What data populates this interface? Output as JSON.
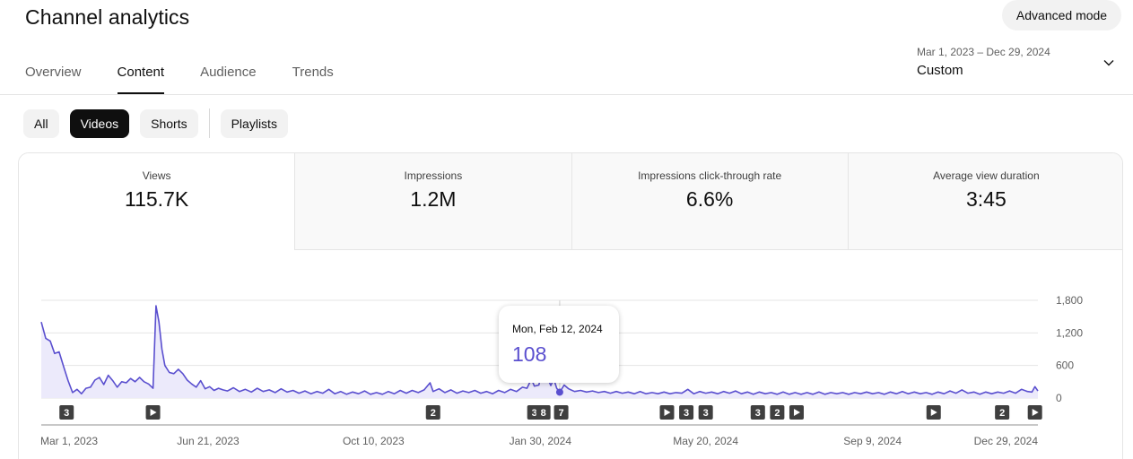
{
  "header": {
    "title": "Channel analytics",
    "advanced_mode_label": "Advanced mode"
  },
  "tabs": [
    {
      "label": "Overview",
      "active": false
    },
    {
      "label": "Content",
      "active": true
    },
    {
      "label": "Audience",
      "active": false
    },
    {
      "label": "Trends",
      "active": false
    }
  ],
  "date_range": {
    "range_label": "Mar 1, 2023 – Dec 29, 2024",
    "preset": "Custom",
    "icon": "chevron-down-icon"
  },
  "filters": {
    "chips": [
      {
        "label": "All",
        "selected": false
      },
      {
        "label": "Videos",
        "selected": true
      },
      {
        "label": "Shorts",
        "selected": false
      }
    ],
    "playlists_label": "Playlists"
  },
  "metrics": [
    {
      "label": "Views",
      "value": "115.7K",
      "selected": true
    },
    {
      "label": "Impressions",
      "value": "1.2M",
      "selected": false
    },
    {
      "label": "Impressions click-through rate",
      "value": "6.6%",
      "selected": false
    },
    {
      "label": "Average view duration",
      "value": "3:45",
      "selected": false
    }
  ],
  "tooltip": {
    "date": "Mon, Feb 12, 2024",
    "value": "108"
  },
  "colors": {
    "series": "#5a4fcf",
    "area_fill": "#eceafb",
    "marker": "#3f3f3f"
  },
  "chart_data": {
    "type": "area",
    "ylim": [
      0,
      1800
    ],
    "y_ticks": [
      0,
      600,
      1200,
      1800
    ],
    "y_tick_labels": [
      "0",
      "600",
      "1,200",
      "1,800"
    ],
    "x_range": [
      "2023-03-01",
      "2024-12-29"
    ],
    "x_tick_labels": [
      {
        "date": "2023-03-01",
        "label": "Mar 1, 2023"
      },
      {
        "date": "2023-06-21",
        "label": "Jun 21, 2023"
      },
      {
        "date": "2023-10-10",
        "label": "Oct 10, 2023"
      },
      {
        "date": "2024-01-30",
        "label": "Jan 30, 2024"
      },
      {
        "date": "2024-05-20",
        "label": "May 20, 2024"
      },
      {
        "date": "2024-09-09",
        "label": "Sep 9, 2024"
      },
      {
        "date": "2024-12-29",
        "label": "Dec 29, 2024"
      }
    ],
    "series": [
      {
        "points": [
          [
            "2023-03-01",
            1400
          ],
          [
            "2023-03-04",
            1100
          ],
          [
            "2023-03-07",
            1050
          ],
          [
            "2023-03-10",
            820
          ],
          [
            "2023-03-13",
            850
          ],
          [
            "2023-03-16",
            580
          ],
          [
            "2023-03-19",
            320
          ],
          [
            "2023-03-22",
            100
          ],
          [
            "2023-03-25",
            160
          ],
          [
            "2023-03-28",
            80
          ],
          [
            "2023-03-31",
            180
          ],
          [
            "2023-04-03",
            200
          ],
          [
            "2023-04-06",
            330
          ],
          [
            "2023-04-09",
            380
          ],
          [
            "2023-04-12",
            250
          ],
          [
            "2023-04-15",
            420
          ],
          [
            "2023-04-18",
            320
          ],
          [
            "2023-04-21",
            200
          ],
          [
            "2023-04-24",
            300
          ],
          [
            "2023-04-27",
            280
          ],
          [
            "2023-04-30",
            360
          ],
          [
            "2023-05-03",
            300
          ],
          [
            "2023-05-06",
            380
          ],
          [
            "2023-05-09",
            300
          ],
          [
            "2023-05-12",
            260
          ],
          [
            "2023-05-15",
            180
          ],
          [
            "2023-05-17",
            1700
          ],
          [
            "2023-05-19",
            1400
          ],
          [
            "2023-05-21",
            900
          ],
          [
            "2023-05-23",
            600
          ],
          [
            "2023-05-26",
            470
          ],
          [
            "2023-05-29",
            450
          ],
          [
            "2023-06-01",
            530
          ],
          [
            "2023-06-04",
            450
          ],
          [
            "2023-06-07",
            330
          ],
          [
            "2023-06-10",
            260
          ],
          [
            "2023-06-13",
            200
          ],
          [
            "2023-06-16",
            320
          ],
          [
            "2023-06-19",
            170
          ],
          [
            "2023-06-22",
            210
          ],
          [
            "2023-06-25",
            140
          ],
          [
            "2023-06-28",
            180
          ],
          [
            "2023-07-01",
            150
          ],
          [
            "2023-07-04",
            130
          ],
          [
            "2023-07-08",
            190
          ],
          [
            "2023-07-12",
            120
          ],
          [
            "2023-07-16",
            160
          ],
          [
            "2023-07-20",
            110
          ],
          [
            "2023-07-24",
            180
          ],
          [
            "2023-07-28",
            120
          ],
          [
            "2023-08-01",
            150
          ],
          [
            "2023-08-05",
            100
          ],
          [
            "2023-08-09",
            170
          ],
          [
            "2023-08-13",
            110
          ],
          [
            "2023-08-17",
            140
          ],
          [
            "2023-08-21",
            90
          ],
          [
            "2023-08-25",
            130
          ],
          [
            "2023-08-29",
            80
          ],
          [
            "2023-09-02",
            120
          ],
          [
            "2023-09-06",
            90
          ],
          [
            "2023-09-10",
            160
          ],
          [
            "2023-09-14",
            80
          ],
          [
            "2023-09-18",
            120
          ],
          [
            "2023-09-22",
            70
          ],
          [
            "2023-09-26",
            110
          ],
          [
            "2023-09-30",
            80
          ],
          [
            "2023-10-04",
            130
          ],
          [
            "2023-10-08",
            70
          ],
          [
            "2023-10-12",
            100
          ],
          [
            "2023-10-16",
            70
          ],
          [
            "2023-10-20",
            120
          ],
          [
            "2023-10-24",
            80
          ],
          [
            "2023-10-28",
            140
          ],
          [
            "2023-11-01",
            90
          ],
          [
            "2023-11-05",
            140
          ],
          [
            "2023-11-09",
            100
          ],
          [
            "2023-11-13",
            150
          ],
          [
            "2023-11-17",
            280
          ],
          [
            "2023-11-19",
            120
          ],
          [
            "2023-11-23",
            170
          ],
          [
            "2023-11-27",
            100
          ],
          [
            "2023-12-01",
            150
          ],
          [
            "2023-12-05",
            90
          ],
          [
            "2023-12-09",
            130
          ],
          [
            "2023-12-13",
            100
          ],
          [
            "2023-12-17",
            140
          ],
          [
            "2023-12-21",
            90
          ],
          [
            "2023-12-25",
            120
          ],
          [
            "2023-12-29",
            80
          ],
          [
            "2024-01-02",
            140
          ],
          [
            "2024-01-06",
            100
          ],
          [
            "2024-01-10",
            160
          ],
          [
            "2024-01-14",
            120
          ],
          [
            "2024-01-18",
            200
          ],
          [
            "2024-01-21",
            180
          ],
          [
            "2024-01-24",
            350
          ],
          [
            "2024-01-26",
            220
          ],
          [
            "2024-01-29",
            240
          ],
          [
            "2024-02-01",
            600
          ],
          [
            "2024-02-03",
            420
          ],
          [
            "2024-02-06",
            230
          ],
          [
            "2024-02-08",
            350
          ],
          [
            "2024-02-10",
            180
          ],
          [
            "2024-02-12",
            108
          ],
          [
            "2024-02-15",
            240
          ],
          [
            "2024-02-18",
            170
          ],
          [
            "2024-02-22",
            120
          ],
          [
            "2024-02-26",
            140
          ],
          [
            "2024-03-01",
            110
          ],
          [
            "2024-03-05",
            130
          ],
          [
            "2024-03-09",
            100
          ],
          [
            "2024-03-13",
            120
          ],
          [
            "2024-03-17",
            90
          ],
          [
            "2024-03-21",
            120
          ],
          [
            "2024-03-25",
            90
          ],
          [
            "2024-03-29",
            110
          ],
          [
            "2024-04-02",
            80
          ],
          [
            "2024-04-06",
            120
          ],
          [
            "2024-04-10",
            80
          ],
          [
            "2024-04-14",
            100
          ],
          [
            "2024-04-18",
            80
          ],
          [
            "2024-04-22",
            110
          ],
          [
            "2024-04-26",
            80
          ],
          [
            "2024-04-30",
            100
          ],
          [
            "2024-05-04",
            90
          ],
          [
            "2024-05-08",
            160
          ],
          [
            "2024-05-12",
            80
          ],
          [
            "2024-05-16",
            120
          ],
          [
            "2024-05-20",
            90
          ],
          [
            "2024-05-24",
            110
          ],
          [
            "2024-05-28",
            80
          ],
          [
            "2024-06-01",
            120
          ],
          [
            "2024-06-05",
            90
          ],
          [
            "2024-06-09",
            130
          ],
          [
            "2024-06-13",
            80
          ],
          [
            "2024-06-17",
            110
          ],
          [
            "2024-06-21",
            70
          ],
          [
            "2024-06-25",
            110
          ],
          [
            "2024-06-29",
            80
          ],
          [
            "2024-07-03",
            100
          ],
          [
            "2024-07-07",
            70
          ],
          [
            "2024-07-11",
            110
          ],
          [
            "2024-07-15",
            70
          ],
          [
            "2024-07-19",
            100
          ],
          [
            "2024-07-23",
            70
          ],
          [
            "2024-07-27",
            100
          ],
          [
            "2024-07-31",
            70
          ],
          [
            "2024-08-04",
            110
          ],
          [
            "2024-08-08",
            70
          ],
          [
            "2024-08-12",
            100
          ],
          [
            "2024-08-16",
            80
          ],
          [
            "2024-08-20",
            100
          ],
          [
            "2024-08-24",
            70
          ],
          [
            "2024-08-28",
            100
          ],
          [
            "2024-09-01",
            80
          ],
          [
            "2024-09-05",
            110
          ],
          [
            "2024-09-09",
            80
          ],
          [
            "2024-09-13",
            100
          ],
          [
            "2024-09-17",
            70
          ],
          [
            "2024-09-21",
            110
          ],
          [
            "2024-09-25",
            80
          ],
          [
            "2024-09-29",
            120
          ],
          [
            "2024-10-03",
            80
          ],
          [
            "2024-10-07",
            110
          ],
          [
            "2024-10-11",
            80
          ],
          [
            "2024-10-15",
            100
          ],
          [
            "2024-10-19",
            70
          ],
          [
            "2024-10-23",
            110
          ],
          [
            "2024-10-27",
            80
          ],
          [
            "2024-10-31",
            130
          ],
          [
            "2024-11-04",
            90
          ],
          [
            "2024-11-08",
            150
          ],
          [
            "2024-11-12",
            90
          ],
          [
            "2024-11-16",
            110
          ],
          [
            "2024-11-20",
            70
          ],
          [
            "2024-11-24",
            110
          ],
          [
            "2024-11-28",
            80
          ],
          [
            "2024-12-02",
            110
          ],
          [
            "2024-12-06",
            90
          ],
          [
            "2024-12-10",
            130
          ],
          [
            "2024-12-14",
            90
          ],
          [
            "2024-12-18",
            160
          ],
          [
            "2024-12-22",
            120
          ],
          [
            "2024-12-25",
            110
          ],
          [
            "2024-12-27",
            210
          ],
          [
            "2024-12-29",
            130
          ]
        ]
      }
    ],
    "hover": {
      "date": "2024-02-12",
      "value": 108
    },
    "markers": [
      {
        "date": "2023-03-18",
        "kind": "count",
        "label": "3"
      },
      {
        "date": "2023-05-15",
        "kind": "video"
      },
      {
        "date": "2023-11-19",
        "kind": "count",
        "label": "2"
      },
      {
        "date": "2024-01-26",
        "kind": "count",
        "label": "3"
      },
      {
        "date": "2024-02-01",
        "kind": "count",
        "label": "8"
      },
      {
        "date": "2024-02-13",
        "kind": "count",
        "label": "7"
      },
      {
        "date": "2024-04-24",
        "kind": "video"
      },
      {
        "date": "2024-05-07",
        "kind": "count",
        "label": "3"
      },
      {
        "date": "2024-05-20",
        "kind": "count",
        "label": "3"
      },
      {
        "date": "2024-06-24",
        "kind": "count",
        "label": "3"
      },
      {
        "date": "2024-07-07",
        "kind": "count",
        "label": "2"
      },
      {
        "date": "2024-07-20",
        "kind": "video"
      },
      {
        "date": "2024-10-20",
        "kind": "video"
      },
      {
        "date": "2024-12-05",
        "kind": "count",
        "label": "2"
      },
      {
        "date": "2024-12-27",
        "kind": "video"
      }
    ],
    "grid": true
  }
}
